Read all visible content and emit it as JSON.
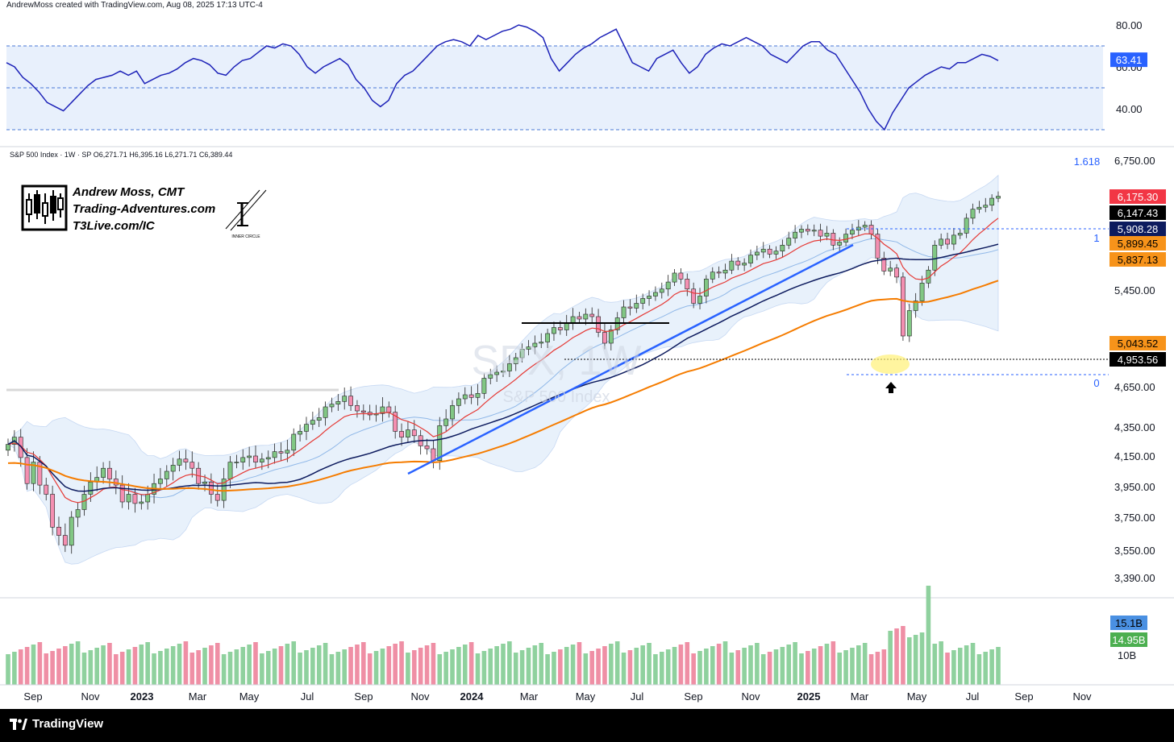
{
  "header": {
    "credit": "AndrewMoss created with TradingView.com, Aug 08, 2025 17:13 UTC-4"
  },
  "footer": {
    "brand": "TradingView"
  },
  "symbol_legend": "S&P 500 Index · 1W · SP  O6,271.71  H6,395.16  L6,271.71  C6,389.44",
  "watermark": {
    "symbol": "SPX, 1W",
    "name": "S&P 500 Index"
  },
  "branding": {
    "name": "Andrew Moss, CMT",
    "site": "Trading-Adventures.com",
    "link": "T3Live.com/IC",
    "seal_text": "INNER CIRCLE"
  },
  "colors": {
    "up": "#81c784",
    "down": "#f48fb1",
    "rsi_line": "#1d22b8",
    "ema_red": "#e53935",
    "ma_navy": "#0d1b5e",
    "ma_orange": "#f57c00",
    "trendline": "#2962ff",
    "band_fill": "#e3eefb"
  },
  "chart_data": {
    "type": "candlestick",
    "symbol": "SPX",
    "interval": "1W",
    "ohlc_last": {
      "open": 6271.71,
      "high": 6395.16,
      "low": 6271.71,
      "close": 6389.44
    },
    "price_axis_ticks": [
      "6,750.00",
      "5,450.00",
      "4,650.00",
      "4,350.00",
      "4,150.00",
      "3,950.00",
      "3,750.00",
      "3,550.00",
      "3,390.00"
    ],
    "time_axis": [
      {
        "label": "Sep",
        "year": false
      },
      {
        "label": "Nov",
        "year": false
      },
      {
        "label": "2023",
        "year": true
      },
      {
        "label": "Mar",
        "year": false
      },
      {
        "label": "May",
        "year": false
      },
      {
        "label": "Jul",
        "year": false
      },
      {
        "label": "Sep",
        "year": false
      },
      {
        "label": "Nov",
        "year": false
      },
      {
        "label": "2024",
        "year": true
      },
      {
        "label": "Mar",
        "year": false
      },
      {
        "label": "May",
        "year": false
      },
      {
        "label": "Jul",
        "year": false
      },
      {
        "label": "Sep",
        "year": false
      },
      {
        "label": "Nov",
        "year": false
      },
      {
        "label": "2025",
        "year": true
      },
      {
        "label": "Mar",
        "year": false
      },
      {
        "label": "May",
        "year": false
      },
      {
        "label": "Jul",
        "year": false
      },
      {
        "label": "Sep",
        "year": false
      },
      {
        "label": "Nov",
        "year": false
      }
    ],
    "price_badges": [
      {
        "label": "6,175.30",
        "bg": "#f23645",
        "fg": "#ffffff"
      },
      {
        "label": "6,147.43",
        "bg": "#000000",
        "fg": "#ffffff"
      },
      {
        "label": "5,908.28",
        "bg": "#0d1b5e",
        "fg": "#ffffff"
      },
      {
        "label": "5,899.45",
        "bg": "#f7931a",
        "fg": "#000000"
      },
      {
        "label": "5,837.13",
        "bg": "#f7931a",
        "fg": "#000000"
      },
      {
        "label": "5,043.52",
        "bg": "#f7931a",
        "fg": "#000000"
      },
      {
        "label": "4,953.56",
        "bg": "#000000",
        "fg": "#ffffff"
      }
    ],
    "fib_levels": [
      {
        "label": "1.618"
      },
      {
        "label": "1"
      },
      {
        "label": "0"
      }
    ],
    "rsi": {
      "ticks": [
        "80.00",
        "60.00",
        "40.00"
      ],
      "current_label": "63.41",
      "current_value": 63.41,
      "upper": 70,
      "mid": 50,
      "lower": 30
    },
    "volume": {
      "badges": [
        {
          "label": "15.1B",
          "bg": "#4a90e2",
          "fg": "#000000"
        },
        {
          "label": "14.95B",
          "bg": "#4caf50",
          "fg": "#ffffff"
        }
      ],
      "axis_label": "10B"
    }
  }
}
